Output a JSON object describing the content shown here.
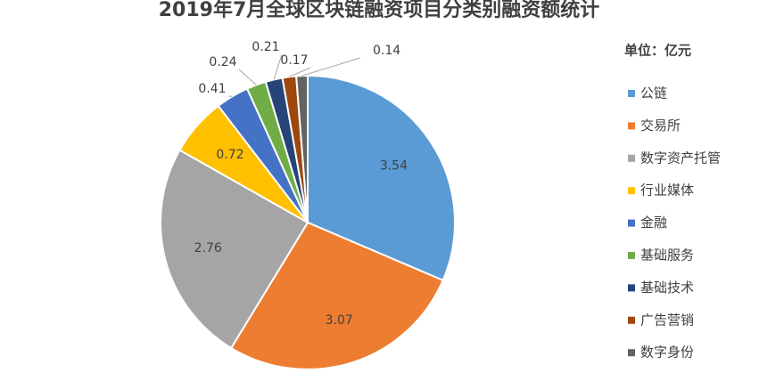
{
  "chart_data": {
    "type": "pie",
    "title": "2019年7月全球区块链融资项目分类别融资额统计",
    "unit_note": "单位：亿元",
    "categories": [
      "公链",
      "交易所",
      "数字资产托管",
      "行业媒体",
      "金融",
      "基础服务",
      "基础技术",
      "广告营销",
      "数字身份"
    ],
    "values": [
      3.54,
      3.07,
      2.76,
      0.72,
      0.41,
      0.24,
      0.21,
      0.17,
      0.14
    ],
    "colors": [
      "#5b9bd5",
      "#ed7d31",
      "#a5a5a5",
      "#ffc000",
      "#4472c4",
      "#70ad47",
      "#264478",
      "#9e480e",
      "#636363"
    ],
    "legend": "right"
  }
}
